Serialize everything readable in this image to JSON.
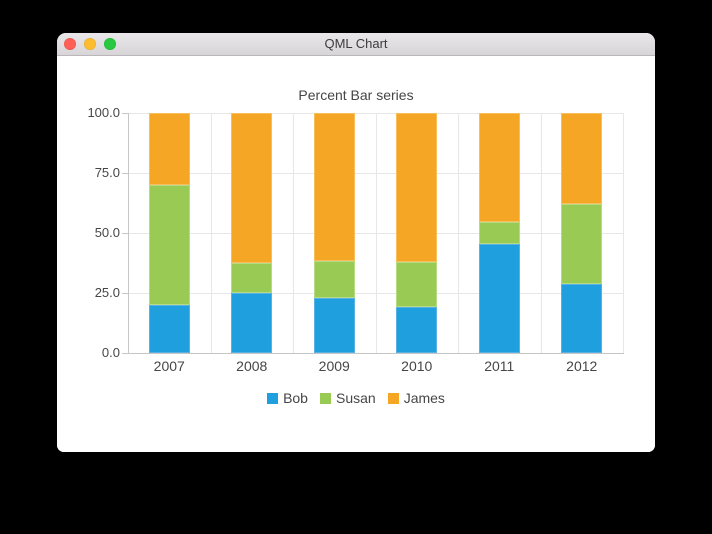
{
  "window": {
    "title": "QML Chart",
    "controls": [
      {
        "name": "close",
        "color": "#ff5f57"
      },
      {
        "name": "minimize",
        "color": "#fdbd2e"
      },
      {
        "name": "zoom",
        "color": "#28c840"
      }
    ]
  },
  "chart_data": {
    "type": "bar",
    "subtype": "percent-stacked",
    "title": "Percent Bar series",
    "categories": [
      "2007",
      "2008",
      "2009",
      "2010",
      "2011",
      "2012"
    ],
    "series": [
      {
        "name": "Bob",
        "color": "#209fdf",
        "border_color": "#58b1e4",
        "values_percent": [
          20.0,
          25.0,
          23.1,
          19.0,
          45.5,
          28.6
        ]
      },
      {
        "name": "Susan",
        "color": "#99ca53",
        "border_color": "#b7da85",
        "values_percent": [
          50.0,
          12.5,
          15.4,
          19.0,
          9.1,
          33.3
        ]
      },
      {
        "name": "James",
        "color": "#f6a625",
        "border_color": "#f8be5e",
        "values_percent": [
          30.0,
          62.5,
          61.5,
          62.0,
          45.4,
          38.1
        ]
      }
    ],
    "xlabel": "",
    "ylabel": "",
    "ylim": [
      0,
      100
    ],
    "y_ticks": [
      {
        "label": "100.0",
        "value": 100
      },
      {
        "label": "75.0",
        "value": 75
      },
      {
        "label": "50.0",
        "value": 50
      },
      {
        "label": "25.0",
        "value": 25
      },
      {
        "label": "0.0",
        "value": 0
      }
    ],
    "grid": true,
    "legend_position": "bottom"
  }
}
